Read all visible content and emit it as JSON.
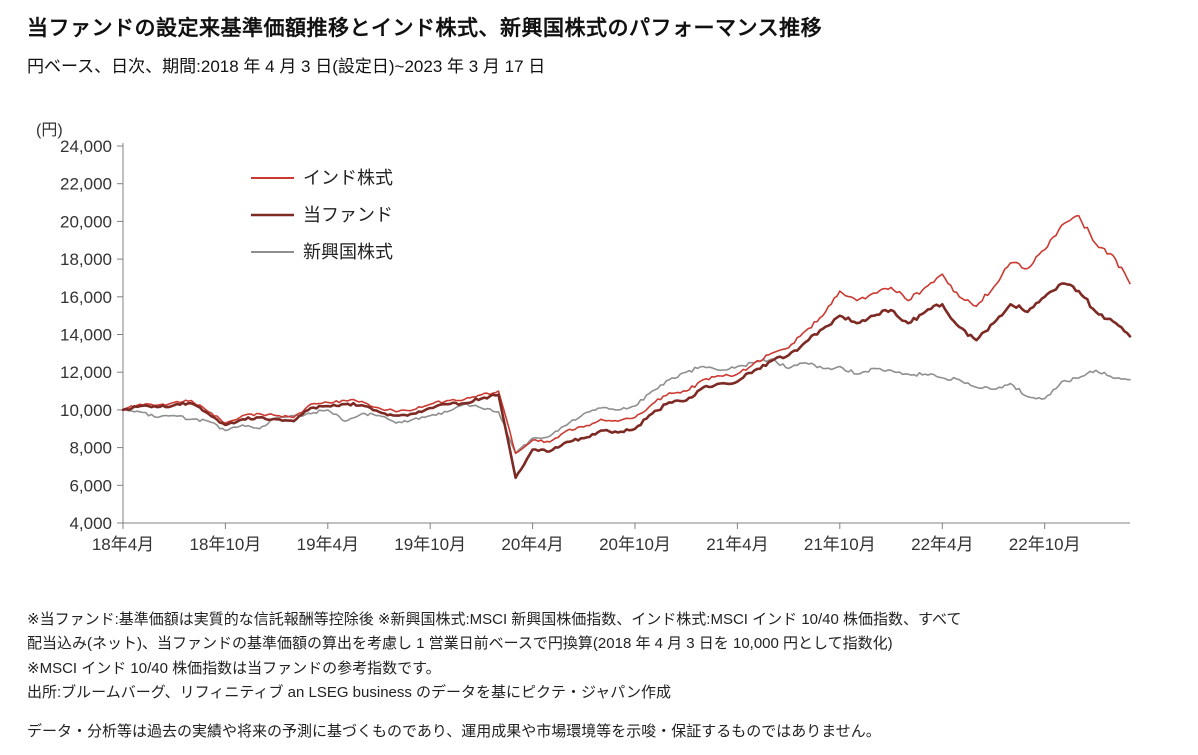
{
  "header": {
    "title": "当ファンドの設定来基準価額推移とインド株式、新興国株式のパフォーマンス推移",
    "subtitle": "円ベース、日次、期間:2018 年 4 月 3 日(設定日)~2023 年 3 月 17 日"
  },
  "chart": {
    "unit_label": "(円)",
    "axis_color": "#808080",
    "legend": [
      {
        "label": "インド株式",
        "color": "#cb3a31",
        "stroke_width": 1.6
      },
      {
        "label": "当ファンド",
        "color": "#7e2a24",
        "stroke_width": 2.6
      },
      {
        "label": "新興国株式",
        "color": "#8f8f8f",
        "stroke_width": 1.6
      }
    ]
  },
  "chart_data": {
    "type": "line",
    "title": "当ファンドの設定来基準価額推移とインド株式、新興国株式のパフォーマンス推移",
    "subtitle": "円ベース、日次、期間:2018 年 4 月 3 日(設定日)~2023 年 3 月 17 日",
    "ylabel": "(円)",
    "ylim": [
      4000,
      24000
    ],
    "ytick_step": 2000,
    "grid": false,
    "legend_position": "upper-left-inside",
    "x": [
      "2018-04",
      "2018-05",
      "2018-06",
      "2018-07",
      "2018-08",
      "2018-09",
      "2018-10",
      "2018-11",
      "2018-12",
      "2019-01",
      "2019-02",
      "2019-03",
      "2019-04",
      "2019-05",
      "2019-06",
      "2019-07",
      "2019-08",
      "2019-09",
      "2019-10",
      "2019-11",
      "2019-12",
      "2020-01",
      "2020-02",
      "2020-03",
      "2020-04",
      "2020-05",
      "2020-06",
      "2020-07",
      "2020-08",
      "2020-09",
      "2020-10",
      "2020-11",
      "2020-12",
      "2021-01",
      "2021-02",
      "2021-03",
      "2021-04",
      "2021-05",
      "2021-06",
      "2021-07",
      "2021-08",
      "2021-09",
      "2021-10",
      "2021-11",
      "2021-12",
      "2022-01",
      "2022-02",
      "2022-03",
      "2022-04",
      "2022-05",
      "2022-06",
      "2022-07",
      "2022-08",
      "2022-09",
      "2022-10",
      "2022-11",
      "2022-12",
      "2023-01",
      "2023-02",
      "2023-03"
    ],
    "xticks": [
      {
        "index": 0,
        "label": "18年4月"
      },
      {
        "index": 6,
        "label": "18年10月"
      },
      {
        "index": 12,
        "label": "19年4月"
      },
      {
        "index": 18,
        "label": "19年10月"
      },
      {
        "index": 24,
        "label": "20年4月"
      },
      {
        "index": 30,
        "label": "20年10月"
      },
      {
        "index": 36,
        "label": "21年4月"
      },
      {
        "index": 42,
        "label": "21年10月"
      },
      {
        "index": 48,
        "label": "22年4月"
      },
      {
        "index": 54,
        "label": "22年10月"
      }
    ],
    "series": [
      {
        "name": "インド株式",
        "key": "india-equity",
        "color": "#cb3a31",
        "stroke_width": 1.6,
        "values": [
          10000,
          10300,
          10250,
          10400,
          10500,
          9900,
          9300,
          9700,
          9800,
          9700,
          9600,
          10300,
          10400,
          10500,
          10450,
          10100,
          9900,
          10000,
          10300,
          10500,
          10550,
          10800,
          11000,
          7700,
          8400,
          8300,
          8900,
          9100,
          9500,
          9400,
          9600,
          10300,
          10900,
          11000,
          11600,
          11800,
          11900,
          12500,
          13000,
          13300,
          14200,
          15000,
          16300,
          15800,
          16200,
          16500,
          15800,
          16500,
          17200,
          16000,
          15500,
          16500,
          17800,
          17500,
          18500,
          19800,
          20300,
          18800,
          18200,
          16700
        ]
      },
      {
        "name": "当ファンド",
        "key": "fund",
        "color": "#7e2a24",
        "stroke_width": 2.6,
        "values": [
          10000,
          10200,
          10150,
          10250,
          10350,
          9800,
          9200,
          9500,
          9600,
          9500,
          9400,
          10100,
          10200,
          10300,
          10250,
          9900,
          9700,
          9800,
          10100,
          10300,
          10350,
          10600,
          10800,
          6400,
          7900,
          7800,
          8300,
          8500,
          8900,
          8800,
          9000,
          9800,
          10400,
          10500,
          11200,
          11400,
          11500,
          12100,
          12600,
          12900,
          13600,
          14300,
          15000,
          14600,
          15000,
          15300,
          14600,
          15200,
          15600,
          14400,
          13700,
          14600,
          15600,
          15200,
          16000,
          16700,
          16300,
          15200,
          14700,
          13900
        ]
      },
      {
        "name": "新興国株式",
        "key": "emerging-equity",
        "color": "#8f8f8f",
        "stroke_width": 1.6,
        "values": [
          10000,
          9900,
          9600,
          9700,
          9500,
          9400,
          8900,
          9200,
          9000,
          9600,
          9700,
          9800,
          10000,
          9400,
          9800,
          9700,
          9300,
          9500,
          9700,
          9900,
          10300,
          10100,
          9900,
          7700,
          8500,
          8600,
          9200,
          9800,
          10100,
          10000,
          10200,
          11000,
          11600,
          12000,
          12300,
          12100,
          12300,
          12500,
          12700,
          12200,
          12500,
          12200,
          12300,
          11900,
          12200,
          12100,
          11900,
          11900,
          11700,
          11600,
          11200,
          11100,
          11400,
          10700,
          10600,
          11500,
          11700,
          12100,
          11700,
          11600
        ]
      }
    ]
  },
  "footnotes": {
    "line1": "※当ファンド:基準価額は実質的な信託報酬等控除後 ※新興国株式:MSCI 新興国株価指数、インド株式:MSCI インド 10/40 株価指数、すべて",
    "line2": "配当込み(ネット)、当ファンドの基準価額の算出を考慮し 1 営業日前ベースで円換算(2018 年 4 月 3 日を 10,000 円として指数化)",
    "line3": "※MSCI インド 10/40 株価指数は当ファンドの参考指数です。",
    "line4": "出所:ブルームバーグ、リフィニティブ an LSEG business のデータを基にピクテ・ジャパン作成",
    "disclaimer": "データ・分析等は過去の実績や将来の予測に基づくものであり、運用成果や市場環境等を示唆・保証するものではありません。"
  }
}
